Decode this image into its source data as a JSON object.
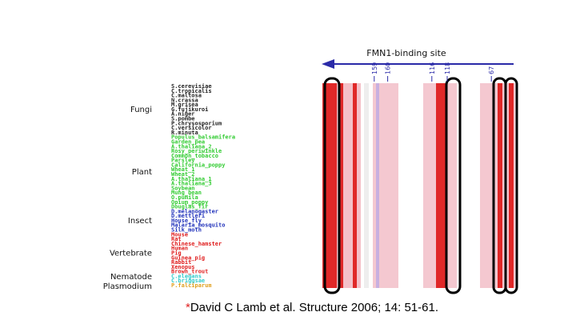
{
  "header": {
    "title": "FMN1-binding site"
  },
  "residue_numbers": [
    {
      "label": "159",
      "x": 0.27
    },
    {
      "label": "160",
      "x": 0.34
    },
    {
      "label": "116",
      "x": 0.57
    },
    {
      "label": "118",
      "x": 0.65
    },
    {
      "label": "67",
      "x": 0.88
    }
  ],
  "groups": [
    {
      "label": "Fungi",
      "color": "#222222",
      "species": [
        "S.cerevisiae",
        "C.tropicalis",
        "C.maltosa",
        "N.crassa",
        "M.grisea",
        "G.fujikuroi",
        "A.niger",
        "S.pombe",
        "P.chrysosporium",
        "C.versicolor",
        "R.minuta"
      ]
    },
    {
      "label": "Plant",
      "color": "#33cc33",
      "species": [
        "Populus_balsamifera",
        "Garden_pea",
        "A.thaliana_2",
        "Rosy_periwinkle",
        "Common_tobacco",
        "Parsley",
        "California_poppy",
        "Wheat_1",
        "Wheat_2",
        "A.thaliana_1",
        "A.thaliana_3",
        "Soybean",
        "Mung_bean",
        "O.pumila",
        "Opium_poppy",
        "Douglas_fir"
      ]
    },
    {
      "label": "Insect",
      "color": "#2233bb",
      "species": [
        "D.melanogaster",
        "D.mettleri",
        "House_fly",
        "Malaria_mosquito",
        "Silk_moth"
      ]
    },
    {
      "label": "Vertebrate",
      "color": "#e02020",
      "species": [
        "Mouse",
        "Rat",
        "Chinese_hamster",
        "Human",
        "Pig",
        "Guinea_pig",
        "Rabbit",
        "Xenopus",
        "Brown_trout"
      ]
    },
    {
      "label": "Nematode",
      "color": "#33cccc",
      "species": [
        "C.elegans",
        "C.briggsae"
      ]
    },
    {
      "label": "Plasmodium",
      "color": "#e0a020",
      "species": [
        "P.falciparum"
      ]
    }
  ],
  "citation": {
    "marker": "*",
    "text": "David C Lamb et al. Structure 2006; 14: 51-61."
  }
}
